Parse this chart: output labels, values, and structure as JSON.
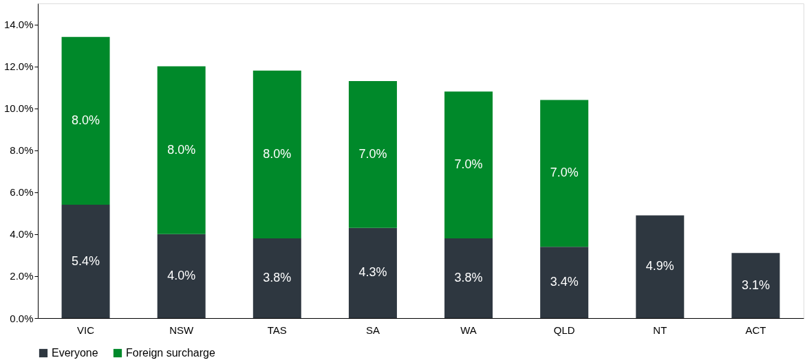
{
  "chart_data": {
    "type": "bar",
    "stacked": true,
    "categories": [
      "VIC",
      "NSW",
      "TAS",
      "SA",
      "WA",
      "QLD",
      "NT",
      "ACT"
    ],
    "series": [
      {
        "name": "Everyone",
        "color": "#2e3740",
        "values": [
          5.4,
          4.0,
          3.8,
          4.3,
          3.8,
          3.4,
          4.9,
          3.1
        ],
        "value_labels": [
          "5.4%",
          "4.0%",
          "3.8%",
          "4.3%",
          "3.8%",
          "3.4%",
          "4.9%",
          "3.1%"
        ]
      },
      {
        "name": "Foreign surcharge",
        "color": "#00892a",
        "values": [
          8.0,
          8.0,
          8.0,
          7.0,
          7.0,
          7.0,
          null,
          null
        ],
        "value_labels": [
          "8.0%",
          "8.0%",
          "8.0%",
          "7.0%",
          "7.0%",
          "7.0%",
          null,
          null
        ]
      }
    ],
    "ylim": [
      0,
      15
    ],
    "yticks": [
      {
        "value": 0,
        "label": "0.0%"
      },
      {
        "value": 2,
        "label": "2.0%"
      },
      {
        "value": 4,
        "label": "4.0%"
      },
      {
        "value": 6,
        "label": "6.0%"
      },
      {
        "value": 8,
        "label": "8.0%"
      },
      {
        "value": 10,
        "label": "10.0%"
      },
      {
        "value": 12,
        "label": "12.0%"
      },
      {
        "value": 14,
        "label": "14.0%"
      }
    ],
    "grid": false,
    "legend": "bottom"
  }
}
